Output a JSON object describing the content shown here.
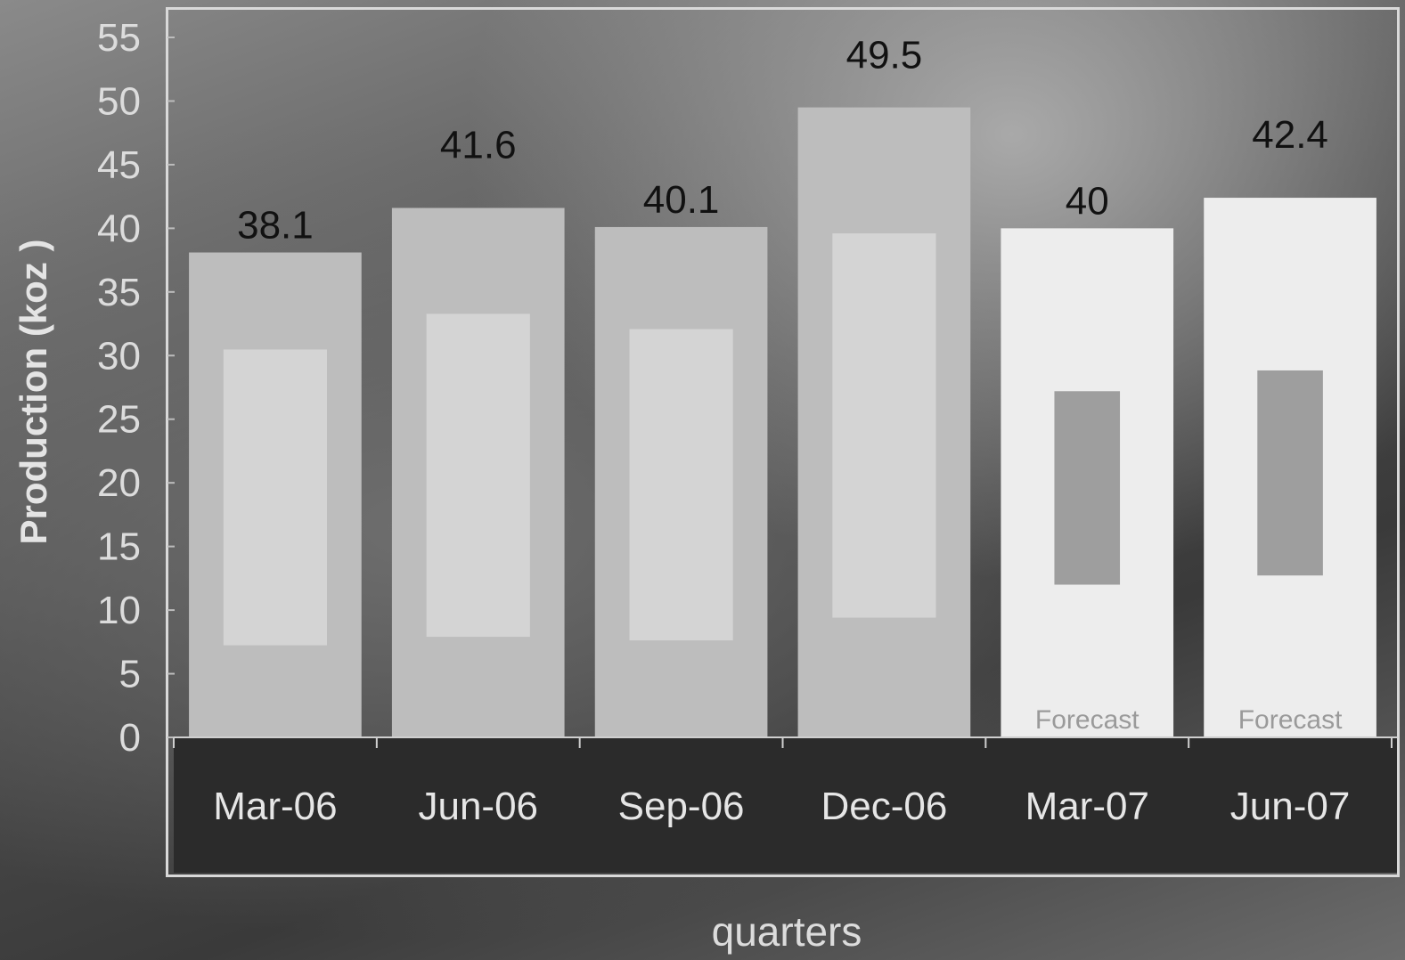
{
  "chart_data": {
    "type": "bar",
    "title": "",
    "xlabel": "quarters",
    "ylabel": "Production (koz )",
    "categories": [
      "Mar-06",
      "Jun-06",
      "Sep-06",
      "Dec-06",
      "Mar-07",
      "Jun-07"
    ],
    "values": [
      38.1,
      41.6,
      40.1,
      49.5,
      40,
      42.4
    ],
    "value_labels": [
      "38.1",
      "41.6",
      "40.1",
      "49.5",
      "40",
      "42.4"
    ],
    "bar_annotations": [
      "",
      "",
      "",
      "",
      "Forecast",
      "Forecast"
    ],
    "ylim": [
      0,
      55
    ],
    "yticks": [
      0,
      5,
      10,
      15,
      20,
      25,
      30,
      35,
      40,
      45,
      50,
      55
    ],
    "grid": false,
    "colors": {
      "actual_bar": "#bdbdbd",
      "actual_inner": "#d4d4d4",
      "forecast_bar": "#ededed",
      "forecast_inner": "#9e9e9e",
      "axis_band": "#2b2b2b"
    }
  }
}
